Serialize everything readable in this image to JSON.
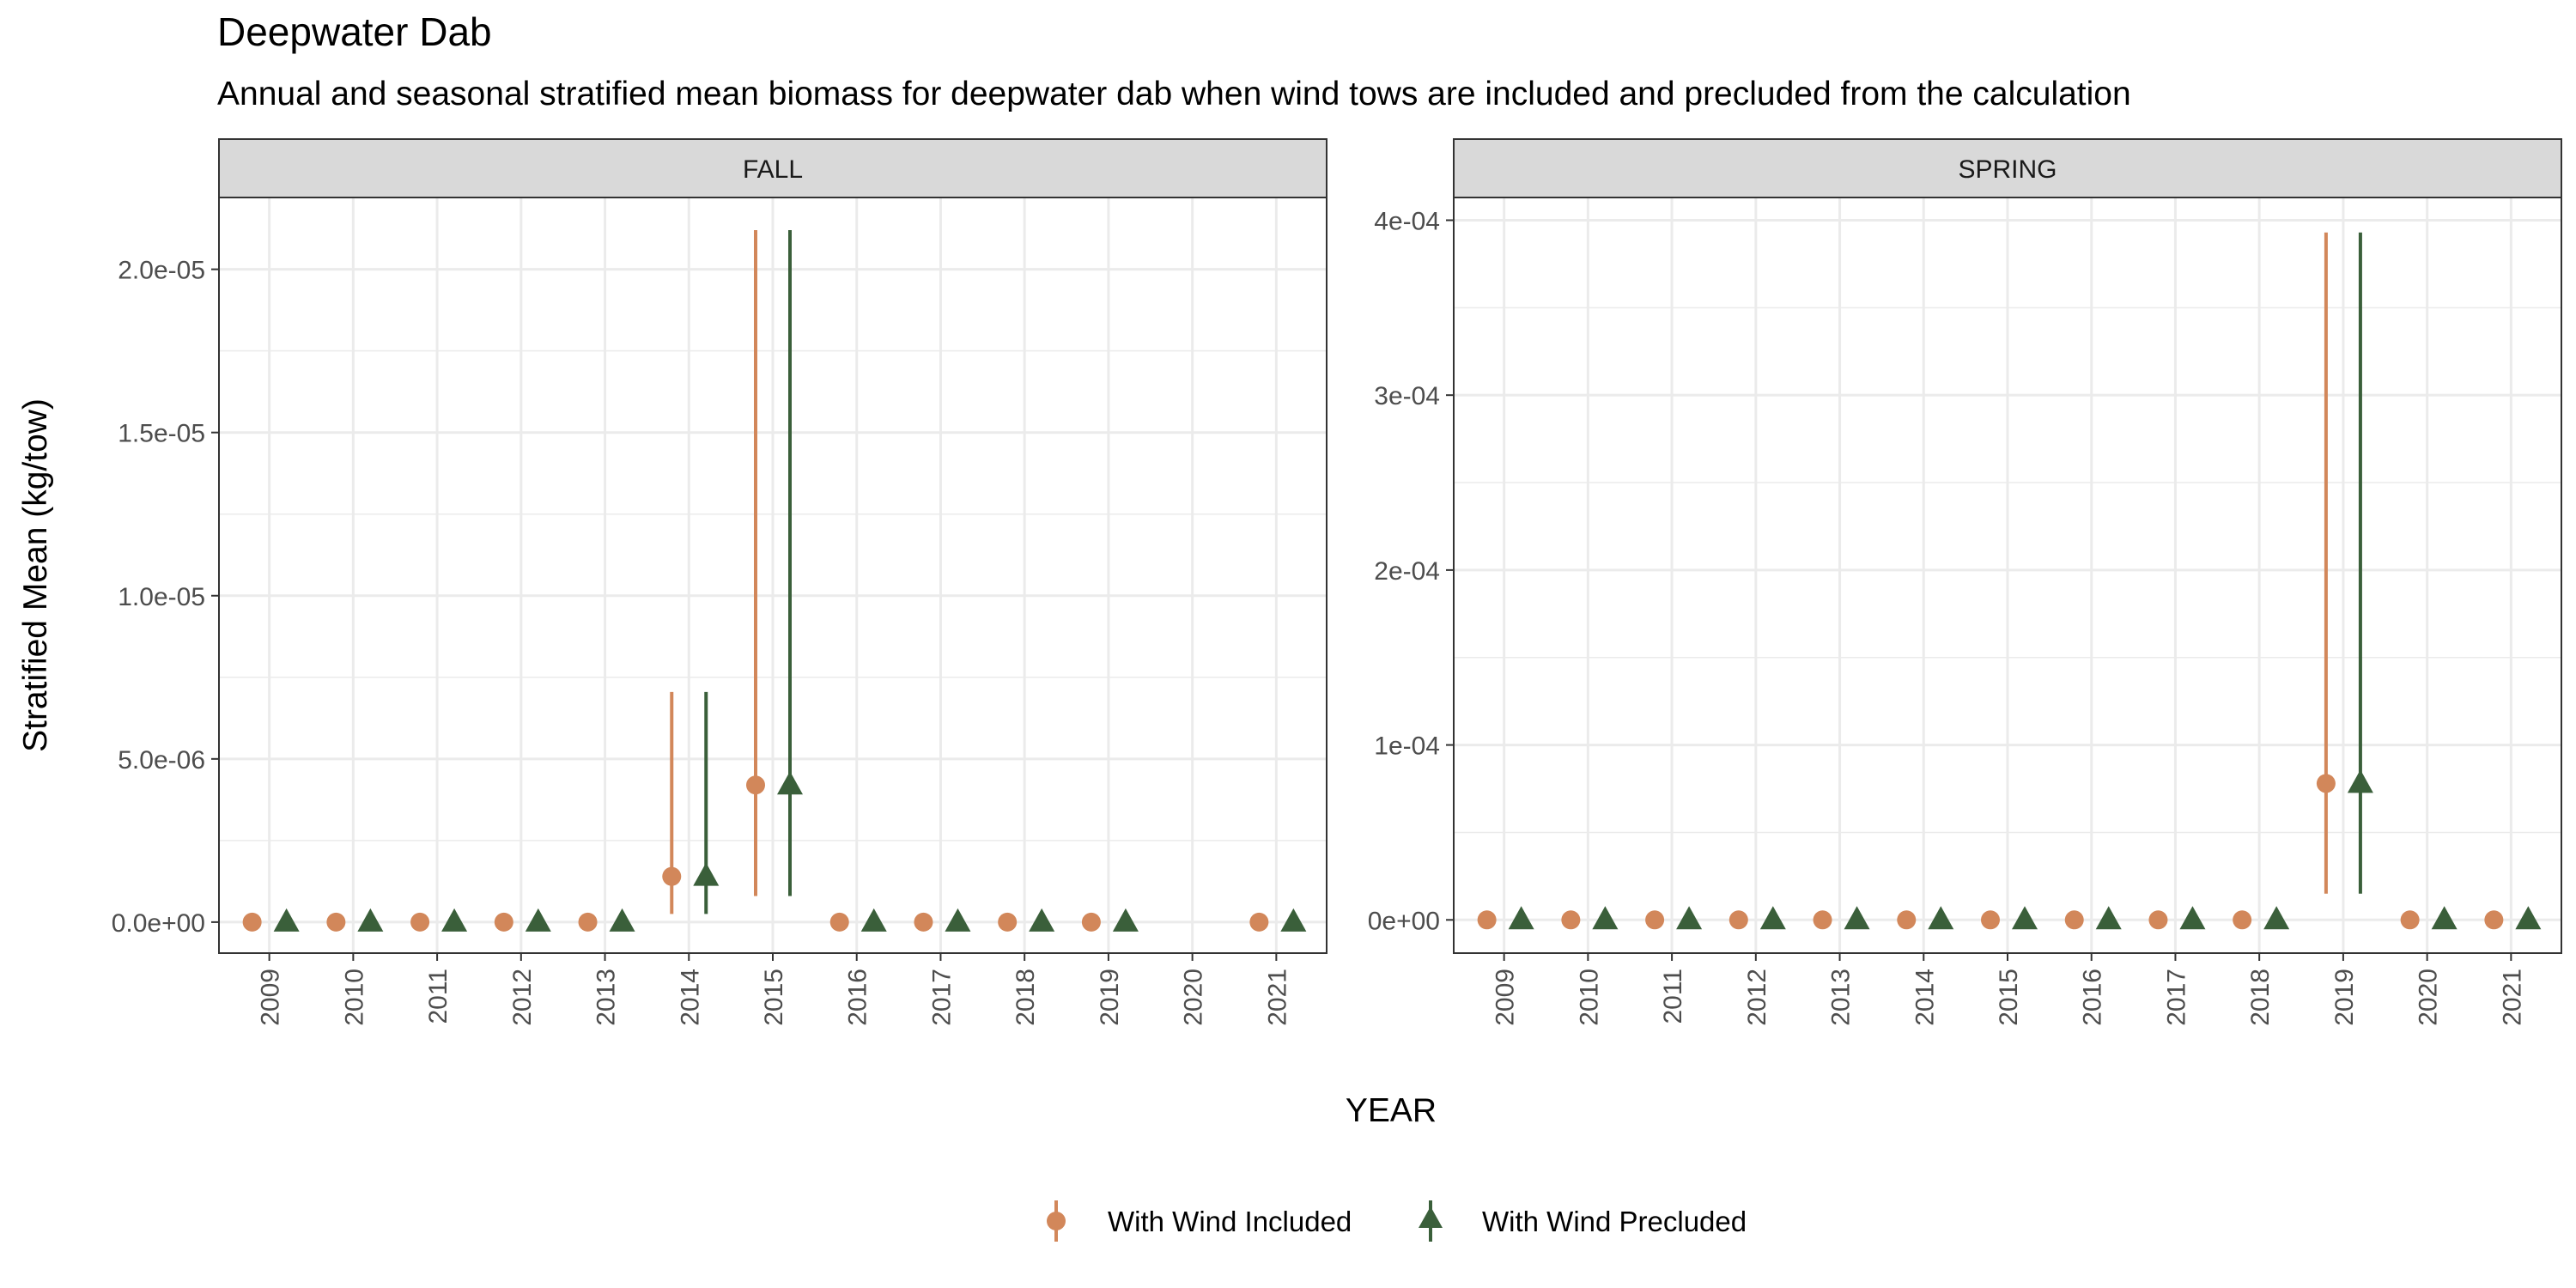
{
  "title": "Deepwater Dab",
  "subtitle": "Annual and seasonal stratified mean biomass for deepwater dab when wind tows are included and precluded from the calculation",
  "colors": {
    "included": "#D2875A",
    "precluded": "#3A5F3A",
    "strip_bg": "#D9D9D9",
    "grid": "#EBEBEB",
    "panel_border": "#333333"
  },
  "chart_data": {
    "type": "scatter",
    "xlabel": "YEAR",
    "ylabel": "Stratified Mean (kg/tow)",
    "legend_position": "bottom",
    "grid": true,
    "legend": [
      {
        "name": "With Wind Included",
        "shape": "circle",
        "color": "#D2875A"
      },
      {
        "name": "With Wind Precluded",
        "shape": "triangle",
        "color": "#3A5F3A"
      }
    ],
    "panels": [
      {
        "label": "FALL",
        "x": [
          "2009",
          "2010",
          "2011",
          "2012",
          "2013",
          "2014",
          "2015",
          "2016",
          "2017",
          "2018",
          "2019",
          "2020",
          "2021"
        ],
        "ylim": [
          -9.5e-07,
          2.22e-05
        ],
        "y_ticks": [
          0,
          5e-06,
          1e-05,
          1.5e-05,
          2e-05
        ],
        "y_tick_labels": [
          "0.0e+00",
          "5.0e-06",
          "1.0e-05",
          "1.5e-05",
          "2.0e-05"
        ],
        "series": [
          {
            "name": "With Wind Included",
            "points": [
              {
                "x": "2009",
                "y": 0
              },
              {
                "x": "2010",
                "y": 0
              },
              {
                "x": "2011",
                "y": 0
              },
              {
                "x": "2012",
                "y": 0
              },
              {
                "x": "2013",
                "y": 0
              },
              {
                "x": "2014",
                "y": 1.4e-06,
                "lo": 2.5e-07,
                "hi": 7.05e-06
              },
              {
                "x": "2015",
                "y": 4.2e-06,
                "lo": 8e-07,
                "hi": 2.12e-05
              },
              {
                "x": "2016",
                "y": 0
              },
              {
                "x": "2017",
                "y": 0
              },
              {
                "x": "2018",
                "y": 0
              },
              {
                "x": "2019",
                "y": 0
              },
              {
                "x": "2021",
                "y": 0
              }
            ]
          },
          {
            "name": "With Wind Precluded",
            "points": [
              {
                "x": "2009",
                "y": 0
              },
              {
                "x": "2010",
                "y": 0
              },
              {
                "x": "2011",
                "y": 0
              },
              {
                "x": "2012",
                "y": 0
              },
              {
                "x": "2013",
                "y": 0
              },
              {
                "x": "2014",
                "y": 1.4e-06,
                "lo": 2.5e-07,
                "hi": 7.05e-06
              },
              {
                "x": "2015",
                "y": 4.2e-06,
                "lo": 8e-07,
                "hi": 2.12e-05
              },
              {
                "x": "2016",
                "y": 0
              },
              {
                "x": "2017",
                "y": 0
              },
              {
                "x": "2018",
                "y": 0
              },
              {
                "x": "2019",
                "y": 0
              },
              {
                "x": "2021",
                "y": 0
              }
            ]
          }
        ]
      },
      {
        "label": "SPRING",
        "x": [
          "2009",
          "2010",
          "2011",
          "2012",
          "2013",
          "2014",
          "2015",
          "2016",
          "2017",
          "2018",
          "2019",
          "2020",
          "2021"
        ],
        "ylim": [
          -1.9e-05,
          0.000413
        ],
        "y_ticks": [
          0,
          0.0001,
          0.0002,
          0.0003,
          0.0004
        ],
        "y_tick_labels": [
          "0e+00",
          "1e-04",
          "2e-04",
          "3e-04",
          "4e-04"
        ],
        "series": [
          {
            "name": "With Wind Included",
            "points": [
              {
                "x": "2009",
                "y": 0
              },
              {
                "x": "2010",
                "y": 0
              },
              {
                "x": "2011",
                "y": 0
              },
              {
                "x": "2012",
                "y": 0
              },
              {
                "x": "2013",
                "y": 0
              },
              {
                "x": "2014",
                "y": 0
              },
              {
                "x": "2015",
                "y": 0
              },
              {
                "x": "2016",
                "y": 0
              },
              {
                "x": "2017",
                "y": 0
              },
              {
                "x": "2018",
                "y": 0
              },
              {
                "x": "2019",
                "y": 7.8e-05,
                "lo": 1.5e-05,
                "hi": 0.000393
              },
              {
                "x": "2020",
                "y": 0
              },
              {
                "x": "2021",
                "y": 0
              }
            ]
          },
          {
            "name": "With Wind Precluded",
            "points": [
              {
                "x": "2009",
                "y": 0
              },
              {
                "x": "2010",
                "y": 0
              },
              {
                "x": "2011",
                "y": 0
              },
              {
                "x": "2012",
                "y": 0
              },
              {
                "x": "2013",
                "y": 0
              },
              {
                "x": "2014",
                "y": 0
              },
              {
                "x": "2015",
                "y": 0
              },
              {
                "x": "2016",
                "y": 0
              },
              {
                "x": "2017",
                "y": 0
              },
              {
                "x": "2018",
                "y": 0
              },
              {
                "x": "2019",
                "y": 7.8e-05,
                "lo": 1.5e-05,
                "hi": 0.000393
              },
              {
                "x": "2020",
                "y": 0
              },
              {
                "x": "2021",
                "y": 0
              }
            ]
          }
        ]
      }
    ]
  }
}
